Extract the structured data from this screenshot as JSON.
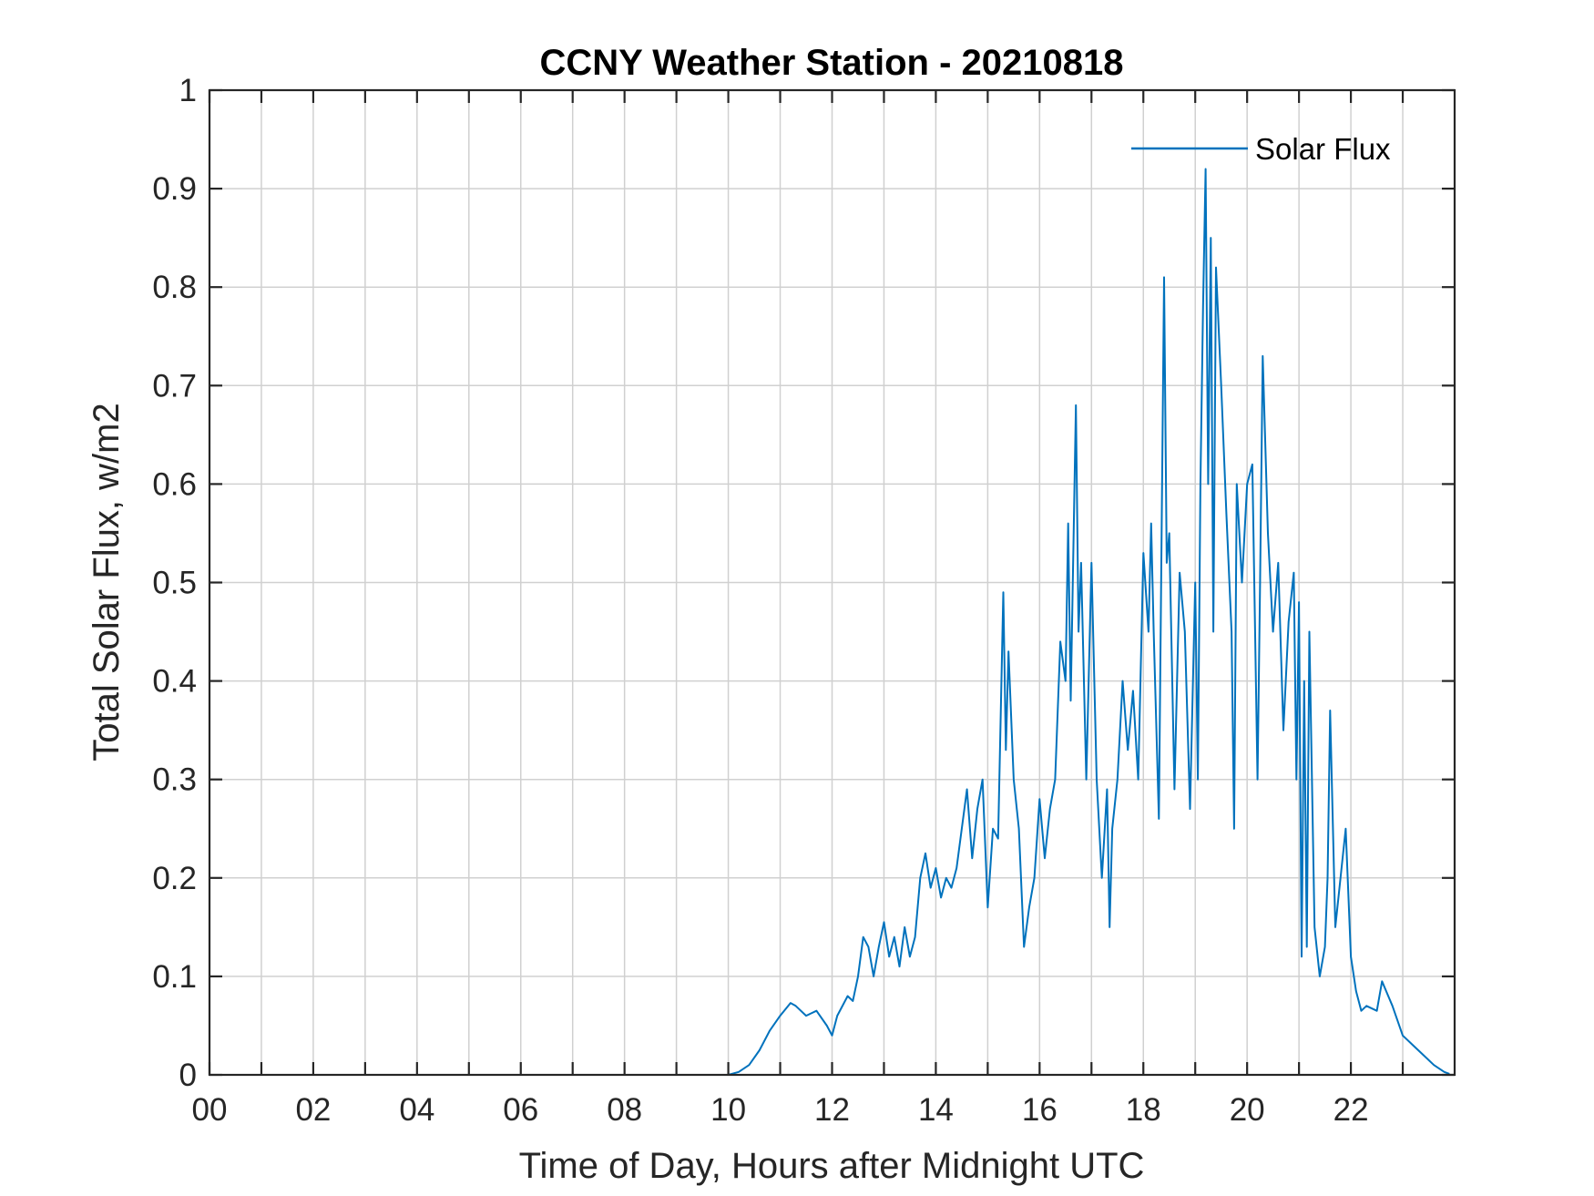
{
  "chart_data": {
    "type": "line",
    "title": "CCNY Weather Station - 20210818",
    "xlabel": "Time of Day, Hours after Midnight UTC",
    "ylabel": "Total Solar Flux, w/m2",
    "xlim": [
      0,
      24
    ],
    "ylim": [
      0,
      1
    ],
    "grid": true,
    "legend_position": "top-right",
    "x_ticks": [
      0,
      2,
      4,
      6,
      8,
      10,
      12,
      14,
      16,
      18,
      20,
      22
    ],
    "x_tick_labels": [
      "00",
      "02",
      "04",
      "06",
      "08",
      "10",
      "12",
      "14",
      "16",
      "18",
      "20",
      "22"
    ],
    "y_ticks": [
      0,
      0.1,
      0.2,
      0.3,
      0.4,
      0.5,
      0.6,
      0.7,
      0.8,
      0.9,
      1
    ],
    "y_tick_labels": [
      "0",
      "0.1",
      "0.2",
      "0.3",
      "0.4",
      "0.5",
      "0.6",
      "0.7",
      "0.8",
      "0.9",
      "1"
    ],
    "series": [
      {
        "name": "Solar Flux",
        "color": "#0072BD",
        "x": [
          0,
          10.0,
          10.2,
          10.4,
          10.6,
          10.8,
          11.0,
          11.2,
          11.3,
          11.5,
          11.7,
          11.9,
          12.0,
          12.1,
          12.3,
          12.4,
          12.5,
          12.6,
          12.7,
          12.8,
          12.9,
          13.0,
          13.1,
          13.2,
          13.3,
          13.4,
          13.5,
          13.6,
          13.7,
          13.8,
          13.9,
          14.0,
          14.1,
          14.2,
          14.3,
          14.4,
          14.5,
          14.6,
          14.7,
          14.8,
          14.9,
          15.0,
          15.1,
          15.2,
          15.3,
          15.35,
          15.4,
          15.5,
          15.6,
          15.7,
          15.8,
          15.9,
          16.0,
          16.1,
          16.2,
          16.3,
          16.4,
          16.5,
          16.55,
          16.6,
          16.7,
          16.75,
          16.8,
          16.9,
          17.0,
          17.1,
          17.2,
          17.3,
          17.35,
          17.4,
          17.5,
          17.6,
          17.7,
          17.8,
          17.9,
          18.0,
          18.1,
          18.15,
          18.2,
          18.3,
          18.4,
          18.45,
          18.5,
          18.6,
          18.7,
          18.8,
          18.9,
          19.0,
          19.05,
          19.1,
          19.15,
          19.2,
          19.25,
          19.3,
          19.35,
          19.4,
          19.5,
          19.6,
          19.7,
          19.75,
          19.8,
          19.9,
          20.0,
          20.1,
          20.2,
          20.25,
          20.3,
          20.4,
          20.5,
          20.6,
          20.7,
          20.8,
          20.9,
          20.95,
          21.0,
          21.05,
          21.1,
          21.15,
          21.2,
          21.3,
          21.4,
          21.5,
          21.55,
          21.6,
          21.7,
          21.8,
          21.9,
          22.0,
          22.1,
          22.2,
          22.3,
          22.5,
          22.6,
          22.8,
          23.0,
          23.2,
          23.4,
          23.6,
          23.8,
          23.9
        ],
        "values": [
          0,
          0,
          0.003,
          0.01,
          0.025,
          0.045,
          0.06,
          0.073,
          0.07,
          0.06,
          0.065,
          0.05,
          0.04,
          0.06,
          0.08,
          0.075,
          0.1,
          0.14,
          0.13,
          0.1,
          0.13,
          0.155,
          0.12,
          0.14,
          0.11,
          0.15,
          0.12,
          0.14,
          0.2,
          0.225,
          0.19,
          0.21,
          0.18,
          0.2,
          0.19,
          0.21,
          0.25,
          0.29,
          0.22,
          0.27,
          0.3,
          0.17,
          0.25,
          0.24,
          0.49,
          0.33,
          0.43,
          0.3,
          0.25,
          0.13,
          0.17,
          0.2,
          0.28,
          0.22,
          0.27,
          0.3,
          0.44,
          0.4,
          0.56,
          0.38,
          0.68,
          0.45,
          0.52,
          0.3,
          0.52,
          0.3,
          0.2,
          0.29,
          0.15,
          0.25,
          0.3,
          0.4,
          0.33,
          0.39,
          0.3,
          0.53,
          0.45,
          0.56,
          0.45,
          0.26,
          0.81,
          0.52,
          0.55,
          0.29,
          0.51,
          0.45,
          0.27,
          0.5,
          0.3,
          0.6,
          0.78,
          0.92,
          0.6,
          0.85,
          0.45,
          0.82,
          0.7,
          0.57,
          0.45,
          0.25,
          0.6,
          0.5,
          0.6,
          0.62,
          0.3,
          0.5,
          0.73,
          0.55,
          0.45,
          0.52,
          0.35,
          0.46,
          0.51,
          0.3,
          0.48,
          0.12,
          0.4,
          0.13,
          0.45,
          0.15,
          0.1,
          0.13,
          0.2,
          0.37,
          0.15,
          0.2,
          0.25,
          0.12,
          0.085,
          0.065,
          0.07,
          0.065,
          0.095,
          0.07,
          0.04,
          0.03,
          0.02,
          0.01,
          0.003,
          0.001
        ]
      }
    ]
  }
}
